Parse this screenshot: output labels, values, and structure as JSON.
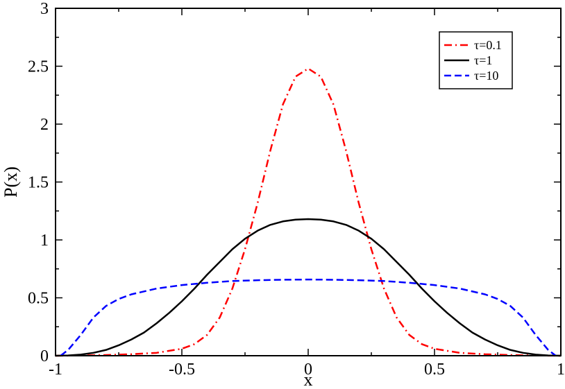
{
  "chart_data": {
    "type": "line",
    "title": "",
    "xlabel": "x",
    "ylabel": "P(x)",
    "xlim": [
      -1,
      1
    ],
    "ylim": [
      0,
      3
    ],
    "grid": false,
    "legend_position": "top-right",
    "x_ticks": [
      {
        "value": -1,
        "label": "-1"
      },
      {
        "value": -0.5,
        "label": "-0.5"
      },
      {
        "value": 0,
        "label": "0"
      },
      {
        "value": 0.5,
        "label": "0.5"
      },
      {
        "value": 1,
        "label": "1"
      }
    ],
    "y_ticks": [
      {
        "value": 0,
        "label": "0"
      },
      {
        "value": 0.5,
        "label": "0.5"
      },
      {
        "value": 1,
        "label": "1"
      },
      {
        "value": 1.5,
        "label": "1.5"
      },
      {
        "value": 2,
        "label": "2"
      },
      {
        "value": 2.5,
        "label": "2.5"
      },
      {
        "value": 3,
        "label": "3"
      }
    ],
    "series": [
      {
        "name": "τ=0.1",
        "color": "#ff0000",
        "style": "dash-dot",
        "points": [
          [
            -1.0,
            0.0
          ],
          [
            -0.9,
            0.002
          ],
          [
            -0.8,
            0.006
          ],
          [
            -0.7,
            0.013
          ],
          [
            -0.6,
            0.025
          ],
          [
            -0.5,
            0.06
          ],
          [
            -0.45,
            0.1
          ],
          [
            -0.4,
            0.18
          ],
          [
            -0.35,
            0.33
          ],
          [
            -0.3,
            0.58
          ],
          [
            -0.25,
            0.92
          ],
          [
            -0.2,
            1.32
          ],
          [
            -0.15,
            1.77
          ],
          [
            -0.1,
            2.17
          ],
          [
            -0.05,
            2.41
          ],
          [
            0.0,
            2.48
          ],
          [
            0.05,
            2.41
          ],
          [
            0.1,
            2.17
          ],
          [
            0.15,
            1.77
          ],
          [
            0.2,
            1.32
          ],
          [
            0.25,
            0.92
          ],
          [
            0.3,
            0.58
          ],
          [
            0.35,
            0.33
          ],
          [
            0.4,
            0.18
          ],
          [
            0.45,
            0.1
          ],
          [
            0.5,
            0.06
          ],
          [
            0.6,
            0.025
          ],
          [
            0.7,
            0.013
          ],
          [
            0.8,
            0.006
          ],
          [
            0.9,
            0.002
          ],
          [
            1.0,
            0.0
          ]
        ]
      },
      {
        "name": "τ=1",
        "color": "#000000",
        "style": "solid",
        "points": [
          [
            -1.0,
            0.0
          ],
          [
            -0.95,
            0.002
          ],
          [
            -0.9,
            0.01
          ],
          [
            -0.85,
            0.025
          ],
          [
            -0.8,
            0.05
          ],
          [
            -0.75,
            0.09
          ],
          [
            -0.7,
            0.14
          ],
          [
            -0.65,
            0.2
          ],
          [
            -0.6,
            0.28
          ],
          [
            -0.55,
            0.37
          ],
          [
            -0.5,
            0.47
          ],
          [
            -0.45,
            0.58
          ],
          [
            -0.4,
            0.7
          ],
          [
            -0.35,
            0.81
          ],
          [
            -0.3,
            0.92
          ],
          [
            -0.25,
            1.01
          ],
          [
            -0.2,
            1.08
          ],
          [
            -0.15,
            1.13
          ],
          [
            -0.1,
            1.16
          ],
          [
            -0.05,
            1.175
          ],
          [
            0.0,
            1.18
          ],
          [
            0.05,
            1.175
          ],
          [
            0.1,
            1.16
          ],
          [
            0.15,
            1.13
          ],
          [
            0.2,
            1.08
          ],
          [
            0.25,
            1.01
          ],
          [
            0.3,
            0.92
          ],
          [
            0.35,
            0.81
          ],
          [
            0.4,
            0.7
          ],
          [
            0.45,
            0.58
          ],
          [
            0.5,
            0.47
          ],
          [
            0.55,
            0.37
          ],
          [
            0.6,
            0.28
          ],
          [
            0.65,
            0.2
          ],
          [
            0.7,
            0.14
          ],
          [
            0.75,
            0.09
          ],
          [
            0.8,
            0.05
          ],
          [
            0.85,
            0.025
          ],
          [
            0.9,
            0.01
          ],
          [
            0.95,
            0.002
          ],
          [
            1.0,
            0.0
          ]
        ]
      },
      {
        "name": "τ=10",
        "color": "#0000ff",
        "style": "dashed",
        "points": [
          [
            -0.98,
            0.0
          ],
          [
            -0.95,
            0.05
          ],
          [
            -0.9,
            0.18
          ],
          [
            -0.85,
            0.33
          ],
          [
            -0.8,
            0.43
          ],
          [
            -0.75,
            0.49
          ],
          [
            -0.7,
            0.53
          ],
          [
            -0.6,
            0.58
          ],
          [
            -0.5,
            0.61
          ],
          [
            -0.4,
            0.63
          ],
          [
            -0.3,
            0.645
          ],
          [
            -0.2,
            0.652
          ],
          [
            -0.1,
            0.656
          ],
          [
            0.0,
            0.658
          ],
          [
            0.1,
            0.656
          ],
          [
            0.2,
            0.652
          ],
          [
            0.3,
            0.645
          ],
          [
            0.4,
            0.63
          ],
          [
            0.5,
            0.61
          ],
          [
            0.6,
            0.58
          ],
          [
            0.7,
            0.53
          ],
          [
            0.75,
            0.49
          ],
          [
            0.8,
            0.43
          ],
          [
            0.85,
            0.33
          ],
          [
            0.9,
            0.18
          ],
          [
            0.95,
            0.05
          ],
          [
            0.98,
            0.0
          ]
        ]
      }
    ]
  }
}
